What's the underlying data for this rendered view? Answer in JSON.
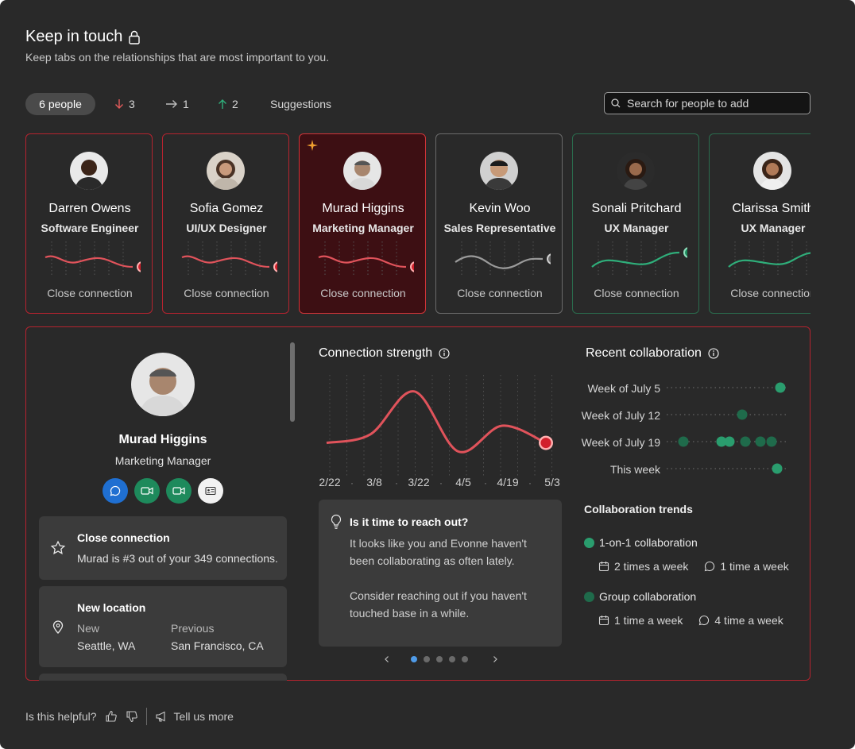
{
  "header": {
    "title": "Keep in touch",
    "subtitle": "Keep tabs on the relationships that are most important to you."
  },
  "filters": {
    "people": "6 people",
    "down": "3",
    "flat": "1",
    "up": "2",
    "suggestions": "Suggestions"
  },
  "search": {
    "placeholder": "Search for people to add"
  },
  "cards": [
    {
      "name": "Darren Owens",
      "role": "Software Engineer",
      "status": "Close connection",
      "trend": "down"
    },
    {
      "name": "Sofia Gomez",
      "role": "UI/UX Designer",
      "status": "Close connection",
      "trend": "down"
    },
    {
      "name": "Murad Higgins",
      "role": "Marketing Manager",
      "status": "Close connection",
      "trend": "down"
    },
    {
      "name": "Kevin Woo",
      "role": "Sales Representative",
      "status": "Close connection",
      "trend": "flat"
    },
    {
      "name": "Sonali Pritchard",
      "role": "UX Manager",
      "status": "Close connection",
      "trend": "up"
    },
    {
      "name": "Clarissa Smith",
      "role": "UX Manager",
      "status": "Close connection",
      "trend": "up"
    }
  ],
  "detail": {
    "name": "Murad Higgins",
    "role": "Marketing Manager",
    "close_title": "Close connection",
    "close_text": "Murad is #3 out of your 349 connections.",
    "location_title": "New location",
    "location_new_label": "New",
    "location_new": "Seattle, WA",
    "location_prev_label": "Previous",
    "location_prev": "San Francisco, CA"
  },
  "strength": {
    "title": "Connection strength",
    "tip_title": "Is it time to reach out?",
    "tip_p1": "It looks like you and Evonne haven't been collaborating as often lately.",
    "tip_p2": "Consider reaching out if you haven't touched base in a while."
  },
  "chart_data": {
    "type": "line",
    "x": [
      "2/22",
      "3/8",
      "3/22",
      "4/5",
      "4/19",
      "5/3"
    ],
    "series": [
      {
        "values": [
          3,
          4,
          9,
          2,
          5,
          3
        ]
      }
    ]
  },
  "collaboration": {
    "title": "Recent collaboration",
    "weeks": [
      "Week of July 5",
      "Week of July 12",
      "Week of July 19",
      "This week"
    ],
    "trends_title": "Collaboration trends",
    "one_on_one": "1-on-1 collaboration",
    "one_on_one_meet": "2 times a week",
    "one_on_one_chat": "1 time a week",
    "group": "Group collaboration",
    "group_meet": "1 time a week",
    "group_chat": "4 time a week"
  },
  "footer": {
    "helpful": "Is this helpful?",
    "tell_more": "Tell us more"
  },
  "colors": {
    "accent_red": "#d13438",
    "accent_green": "#2a9d6e",
    "accent_blue": "#2f7bd6"
  }
}
